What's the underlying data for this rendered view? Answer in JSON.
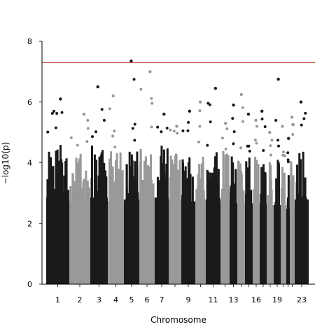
{
  "chart_data": {
    "type": "scatter",
    "subtype": "manhattan",
    "title": "",
    "xlabel": "Chromosome",
    "ylabel": "−log10(p)",
    "ylim": [
      0,
      8
    ],
    "y_ticks": [
      0,
      2,
      4,
      6,
      8
    ],
    "grid": false,
    "legend": "none",
    "significance_threshold": 7.3,
    "threshold_color": "#c0392b",
    "colors": {
      "odd": "#1a1a1a",
      "even": "#999999"
    },
    "tick_labels": [
      "1",
      "2",
      "3",
      "4",
      "5",
      "6",
      "7",
      "9",
      "11",
      "13",
      "16",
      "19",
      "23"
    ],
    "chromosomes": [
      {
        "chr": "1",
        "label": "1",
        "tower_height": 4.6,
        "peak": 6.1
      },
      {
        "chr": "2",
        "label": "2",
        "tower_height": 4.4,
        "peak": 5.6
      },
      {
        "chr": "3",
        "label": "3",
        "tower_height": 4.6,
        "peak": 6.5
      },
      {
        "chr": "4",
        "label": "4",
        "tower_height": 4.4,
        "peak": 6.2
      },
      {
        "chr": "5",
        "label": "5",
        "tower_height": 4.5,
        "peak": 7.35
      },
      {
        "chr": "6",
        "label": "6",
        "tower_height": 4.6,
        "peak": 7.0
      },
      {
        "chr": "7",
        "label": "7",
        "tower_height": 4.6,
        "peak": 5.6
      },
      {
        "chr": "8",
        "label": "",
        "tower_height": 4.5,
        "peak": 5.2
      },
      {
        "chr": "9",
        "label": "9",
        "tower_height": 4.4,
        "peak": 5.7
      },
      {
        "chr": "10",
        "label": "",
        "tower_height": 4.5,
        "peak": 6.0
      },
      {
        "chr": "11",
        "label": "11",
        "tower_height": 4.5,
        "peak": 6.45
      },
      {
        "chr": "12",
        "label": "",
        "tower_height": 4.4,
        "peak": 5.3
      },
      {
        "chr": "13",
        "label": "13",
        "tower_height": 4.3,
        "peak": 5.9
      },
      {
        "chr": "14",
        "label": "",
        "tower_height": 4.3,
        "peak": 6.25
      },
      {
        "chr": "15",
        "label": "",
        "tower_height": 4.3,
        "peak": 5.6
      },
      {
        "chr": "16",
        "label": "16",
        "tower_height": 4.3,
        "peak": 5.4
      },
      {
        "chr": "17",
        "label": "",
        "tower_height": 4.3,
        "peak": 5.7
      },
      {
        "chr": "18",
        "label": "",
        "tower_height": 4.2,
        "peak": 5.0
      },
      {
        "chr": "19",
        "label": "19",
        "tower_height": 4.2,
        "peak": 6.75
      },
      {
        "chr": "20",
        "label": "",
        "tower_height": 4.2,
        "peak": 5.2
      },
      {
        "chr": "21",
        "label": "",
        "tower_height": 4.0,
        "peak": 4.8
      },
      {
        "chr": "22",
        "label": "",
        "tower_height": 4.1,
        "peak": 5.5
      },
      {
        "chr": "23",
        "label": "23",
        "tower_height": 4.5,
        "peak": 6.0
      }
    ]
  }
}
